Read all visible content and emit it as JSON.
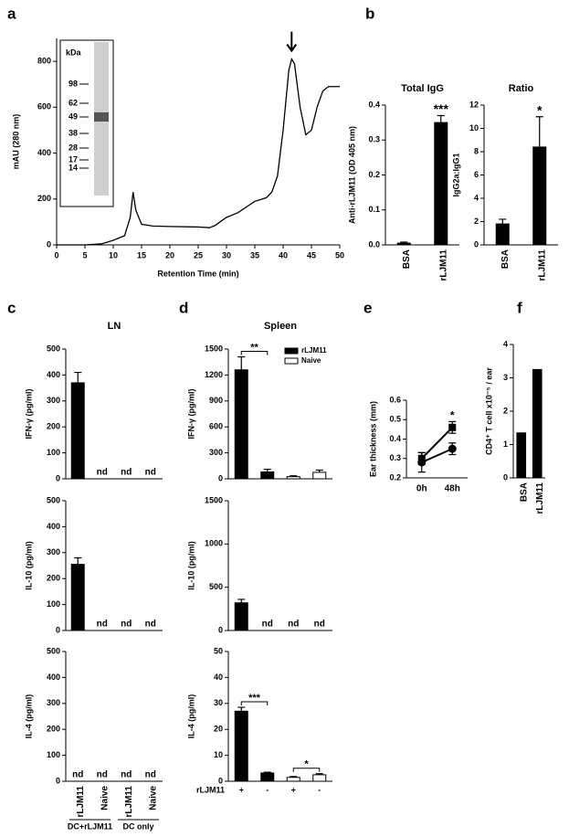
{
  "chart_data": [
    {
      "type": "line",
      "label": "a",
      "x_label": "Retention Time (min)",
      "y_label": "mAU (280 nm)",
      "x": [
        0,
        5,
        8,
        10,
        12,
        13,
        13.5,
        14,
        15,
        17,
        20,
        25,
        27,
        28,
        30,
        32,
        35,
        37,
        38,
        39,
        40,
        41,
        41.5,
        42,
        43,
        44,
        45,
        46,
        47,
        48,
        50
      ],
      "values": [
        0,
        0,
        5,
        20,
        40,
        120,
        230,
        150,
        90,
        82,
        80,
        78,
        75,
        85,
        120,
        140,
        190,
        205,
        230,
        300,
        500,
        760,
        810,
        790,
        600,
        480,
        500,
        600,
        670,
        690,
        690
      ],
      "color": "#000000",
      "xlim": [
        0,
        50
      ],
      "xticks": [
        0,
        5,
        10,
        15,
        20,
        25,
        30,
        35,
        40,
        45,
        50
      ],
      "ylim": [
        0,
        900
      ],
      "yticks": [
        0,
        200,
        400,
        600,
        800
      ],
      "inset": {
        "title": "kDa",
        "ladder": [
          98,
          62,
          49,
          38,
          28,
          17,
          14
        ]
      }
    },
    {
      "type": "bar",
      "label": "b",
      "title": "Total IgG",
      "y_label": "Anti-rLJM11 (OD 405 nm)",
      "categories": [
        "BSA",
        "rLJM11"
      ],
      "values": [
        0.005,
        0.35
      ],
      "errors": [
        0.003,
        0.02
      ],
      "color": "#000000",
      "annotations": [
        null,
        "***"
      ],
      "ylim": [
        0,
        0.4
      ],
      "yticks": [
        {
          "value": 0,
          "label": "0.0"
        },
        0.1,
        0.2,
        0.3,
        0.4
      ]
    },
    {
      "type": "bar",
      "title": "Ratio",
      "y_label": "IgG2a:IgG1",
      "categories": [
        "BSA",
        "rLJM11"
      ],
      "values": [
        1.8,
        8.4
      ],
      "errors": [
        0.4,
        2.6
      ],
      "color": "#000000",
      "annotations": [
        null,
        "*"
      ],
      "ylim": [
        0,
        12
      ],
      "yticks": [
        0,
        2,
        4,
        6,
        8,
        10,
        12
      ]
    },
    {
      "type": "bar",
      "label": "c",
      "title": "LN",
      "y_label": "IFN-γ (pg/ml)",
      "values": [
        370,
        null,
        null,
        null
      ],
      "errors": [
        40,
        null,
        null,
        null
      ],
      "value_labels": [
        null,
        "nd",
        "nd",
        "nd"
      ],
      "color": "#000000",
      "ylim": [
        0,
        500
      ],
      "yticks": [
        0,
        100,
        200,
        300,
        400,
        500
      ]
    },
    {
      "type": "bar",
      "y_label": "IL-10 (pg/ml)",
      "values": [
        255,
        null,
        null,
        null
      ],
      "errors": [
        25,
        null,
        null,
        null
      ],
      "value_labels": [
        null,
        "nd",
        "nd",
        "nd"
      ],
      "color": "#000000",
      "ylim": [
        0,
        500
      ],
      "yticks": [
        0,
        100,
        200,
        300,
        400,
        500
      ]
    },
    {
      "type": "bar",
      "y_label": "IL-4 (pg/ml)",
      "categories": [
        "rLJM11",
        "Naive",
        "rLJM11",
        "Naive"
      ],
      "groups": [
        "DC+rLJM11",
        "DC only"
      ],
      "values": [
        null,
        null,
        null,
        null
      ],
      "value_labels": [
        "nd",
        "nd",
        "nd",
        "nd"
      ],
      "color": "#000000",
      "ylim": [
        0,
        500
      ],
      "yticks": [
        0,
        100,
        200,
        300,
        400,
        500
      ]
    },
    {
      "type": "bar",
      "label": "d",
      "title": "Spleen",
      "y_label": "IFN-γ (pg/ml)",
      "legend": "upper right",
      "brackets": true,
      "series": [
        {
          "name": "rLJM11",
          "color": "#000000",
          "values": [
            1260,
            80,
            null,
            null
          ],
          "errors": [
            150,
            30,
            null,
            null
          ]
        },
        {
          "name": "Naive",
          "color": "#ffffff",
          "values": [
            null,
            null,
            25,
            75
          ],
          "errors": [
            null,
            null,
            10,
            25
          ]
        }
      ],
      "annotations": [
        "**",
        null,
        null,
        null
      ],
      "ylim": [
        0,
        1500
      ],
      "yticks": [
        0,
        300,
        600,
        900,
        1200,
        1500
      ]
    },
    {
      "type": "bar",
      "y_label": "IL-10 (pg/ml)",
      "series": [
        {
          "color": "#000000",
          "values": [
            320,
            null,
            null,
            null
          ],
          "errors": [
            40,
            null,
            null,
            null
          ],
          "value_labels": [
            null,
            "nd",
            null,
            null
          ]
        },
        {
          "color": "#ffffff",
          "values": [
            null,
            null,
            null,
            null
          ],
          "value_labels": [
            null,
            null,
            "nd",
            "nd"
          ]
        }
      ],
      "ylim": [
        0,
        1500
      ],
      "yticks": [
        0,
        500,
        1000,
        1500
      ]
    },
    {
      "type": "bar",
      "y_label": "IL-4 (pg/ml)",
      "x_label": "rLJM11",
      "categories": [
        "+",
        "-",
        "+",
        "-"
      ],
      "brackets": true,
      "series": [
        {
          "color": "#000000",
          "values": [
            27,
            3.2,
            null,
            null
          ],
          "errors": [
            1.5,
            0.3,
            null,
            null
          ]
        },
        {
          "color": "#ffffff",
          "values": [
            null,
            null,
            1.5,
            2.5
          ],
          "errors": [
            null,
            null,
            0.3,
            0.4
          ]
        }
      ],
      "annotations": [
        "***",
        null,
        "*",
        null
      ],
      "ylim": [
        0,
        50
      ],
      "yticks": [
        0,
        10,
        20,
        30,
        40,
        50
      ]
    },
    {
      "type": "errline",
      "label": "e",
      "y_label": "Ear thickness (mm)",
      "categories": [
        "0h",
        "48h"
      ],
      "series": [
        {
          "color": "#000000",
          "marker": "square",
          "values": [
            0.3,
            0.46
          ],
          "errors": [
            0.03,
            0.03
          ]
        },
        {
          "color": "#000000",
          "marker": "circle",
          "values": [
            0.28,
            0.35
          ],
          "errors": [
            0.05,
            0.03
          ]
        }
      ],
      "annotations": [
        null,
        "*"
      ],
      "ylim": [
        0.2,
        0.6
      ],
      "yticks": [
        0.2,
        0.3,
        0.4,
        0.5,
        0.6
      ]
    },
    {
      "type": "bar",
      "label": "f",
      "y_label": "CD4⁺ T cell x10⁻⁵ / ear",
      "categories": [
        "BSA",
        "rLJM11"
      ],
      "values": [
        1.35,
        3.25
      ],
      "color": "#000000",
      "ylim": [
        0,
        4
      ],
      "yticks": [
        0,
        1,
        2,
        3,
        4
      ]
    }
  ]
}
